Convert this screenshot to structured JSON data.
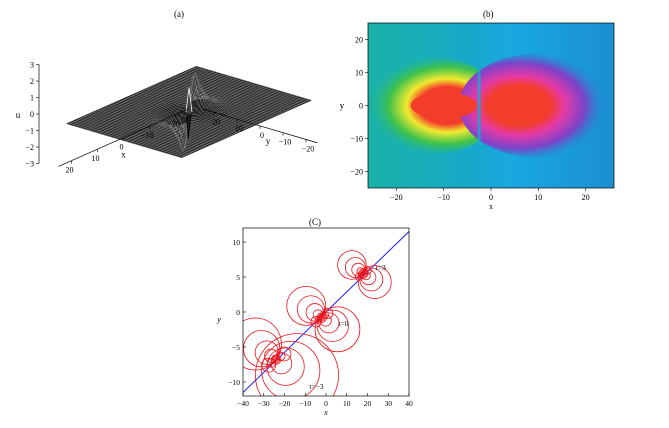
{
  "chart_data": [
    {
      "panel_label": "(a)",
      "type": "surface-3d",
      "z_label": "u",
      "z_ticks": [
        "3",
        "2",
        "1",
        "0",
        "−1",
        "−2",
        "−3"
      ],
      "x_label": "x",
      "x_ticks": [
        "20",
        "10",
        "0",
        "−10",
        "−20"
      ],
      "y_label": "y",
      "y_ticks": [
        "20",
        "10",
        "0",
        "−10",
        "−20"
      ],
      "zlim": [
        -3,
        3
      ],
      "description_shape": "localized lump with a positive peak and a negative trough near the origin on a flat background",
      "mesh_color": "#000000"
    },
    {
      "panel_label": "(b)",
      "type": "heatmap",
      "xlabel": "x",
      "ylabel": "y",
      "x_ticks": [
        "−20",
        "−10",
        "0",
        "10",
        "20"
      ],
      "y_ticks": [
        "20",
        "10",
        "0",
        "−10",
        "−20"
      ],
      "xlim": [
        -26,
        26
      ],
      "ylim": [
        -25,
        25
      ],
      "colors": {
        "background": "#11a3d8",
        "hot": "#f23d2a",
        "left_halo_yellow": "#f0ea30",
        "left_halo_green": "#3fc24a",
        "right_halo_magenta": "#e43aa8",
        "right_halo_purple": "#7b44c9"
      }
    },
    {
      "panel_label": "(C)",
      "type": "contour",
      "xlabel": "x",
      "ylabel": "y",
      "x_ticks": [
        "−40",
        "−30",
        "−20",
        "−10",
        "0",
        "10",
        "20",
        "30",
        "40"
      ],
      "y_ticks": [
        "10",
        "5",
        "0",
        "−5",
        "−10"
      ],
      "xlim": [
        -40,
        40
      ],
      "ylim": [
        -12,
        12
      ],
      "trajectory_line": {
        "x": [
          -40,
          40
        ],
        "y": [
          -11.5,
          11.5
        ],
        "color": "#1c1cff"
      },
      "contour_color": "#e8141c",
      "annotations": [
        {
          "text": "t=3",
          "x": 24,
          "y": 6
        },
        {
          "text": "t=0",
          "x": 6,
          "y": -2
        },
        {
          "text": "t=−3",
          "x": -8,
          "y": -11
        }
      ],
      "centers": [
        {
          "t": 3,
          "x": 18,
          "y": 5.5
        },
        {
          "t": 0,
          "x": -2,
          "y": -0.8
        },
        {
          "t": -3,
          "x": -24,
          "y": -6.8
        }
      ]
    }
  ]
}
